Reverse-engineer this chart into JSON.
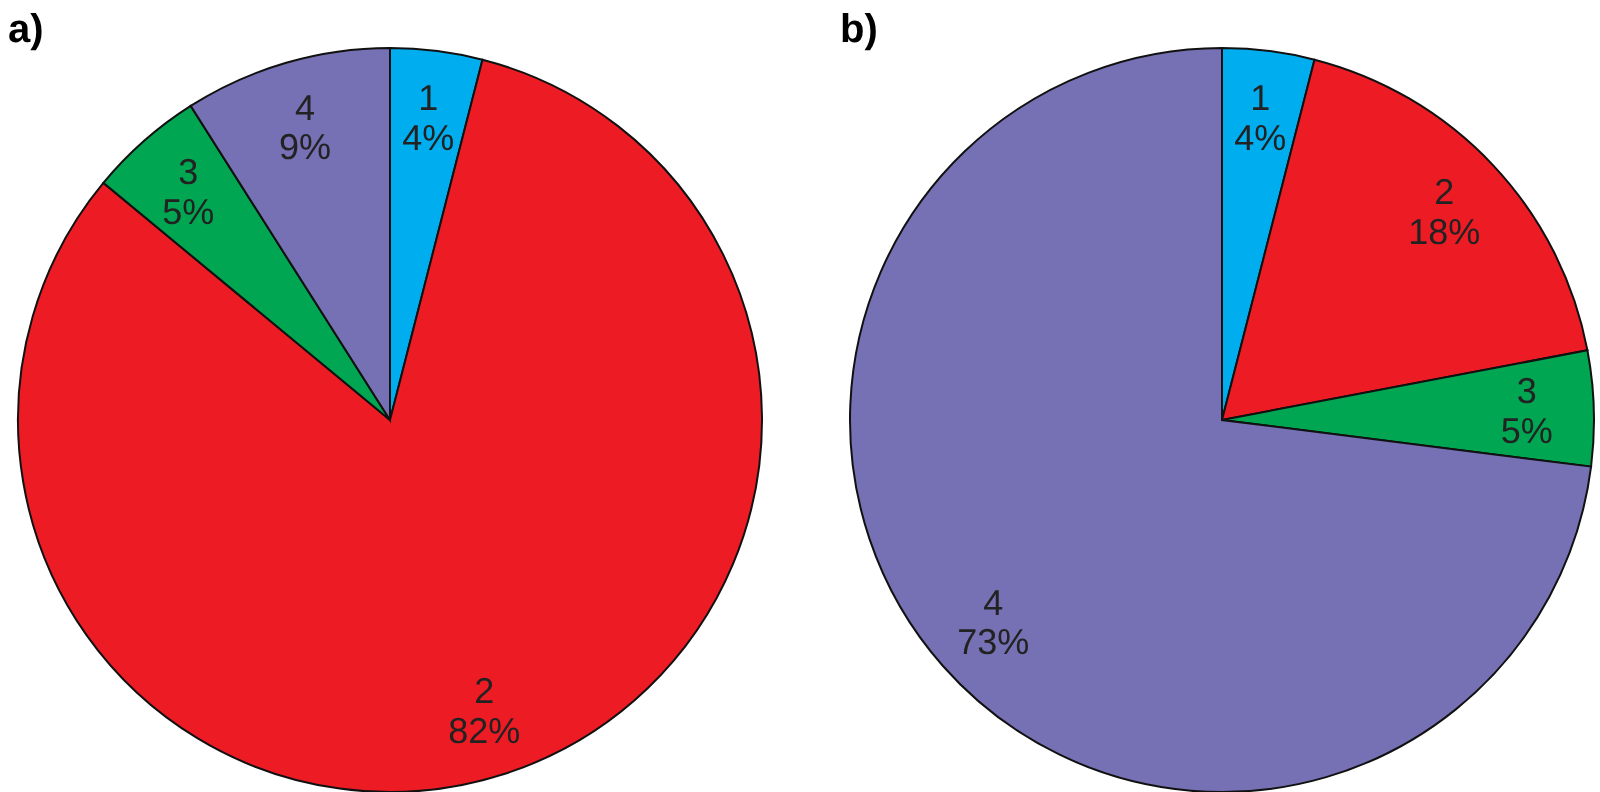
{
  "chart_data": [
    {
      "type": "pie",
      "title": "a)",
      "categories": [
        "1",
        "2",
        "3",
        "4"
      ],
      "values": [
        4,
        82,
        5,
        9
      ],
      "value_labels": [
        "4%",
        "82%",
        "5%",
        "9%"
      ],
      "colors": [
        "#00aeef",
        "#ed1c24",
        "#00a651",
        "#7671b4"
      ]
    },
    {
      "type": "pie",
      "title": "b)",
      "categories": [
        "1",
        "2",
        "3",
        "4"
      ],
      "values": [
        4,
        18,
        5,
        73
      ],
      "value_labels": [
        "4%",
        "18%",
        "5%",
        "73%"
      ],
      "colors": [
        "#00aeef",
        "#ed1c24",
        "#00a651",
        "#7671b4"
      ]
    }
  ]
}
